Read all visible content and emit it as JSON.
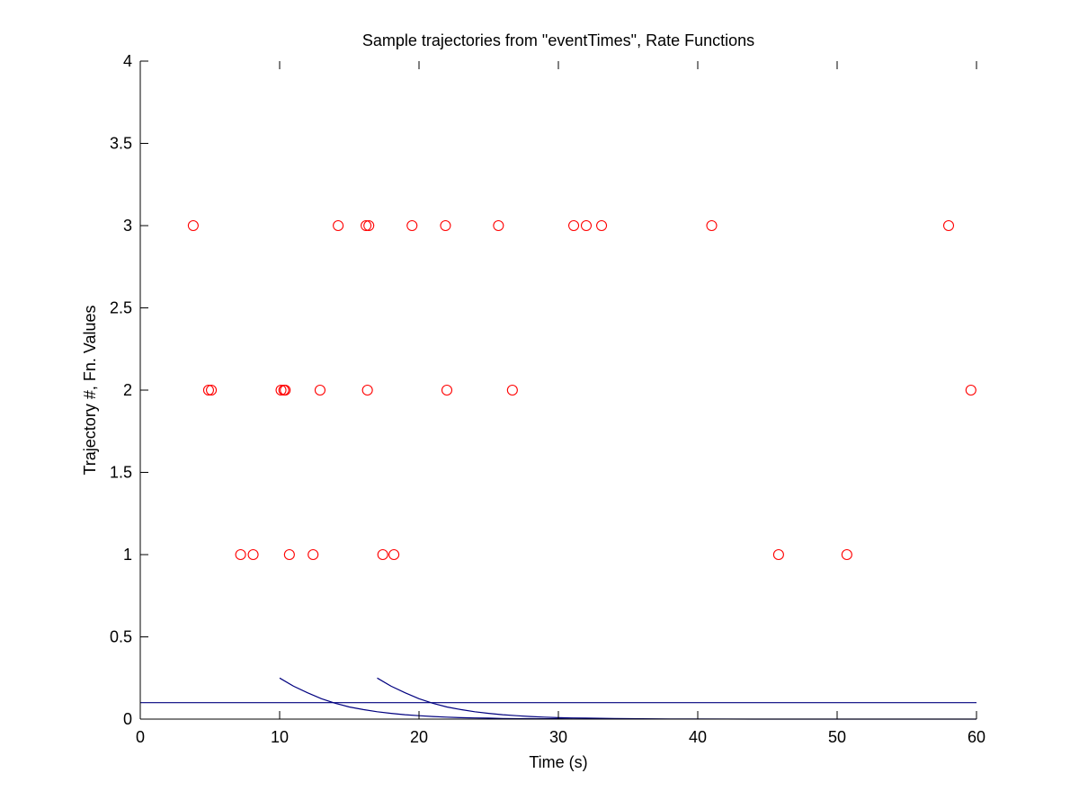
{
  "chart_data": {
    "type": "scatter",
    "title": "Sample trajectories from \"eventTimes\", Rate Functions",
    "xlabel": "Time (s)",
    "ylabel": "Trajectory #, Fn. Values",
    "xlim": [
      0,
      60
    ],
    "ylim": [
      0,
      4
    ],
    "xticks": [
      0,
      10,
      20,
      30,
      40,
      50,
      60
    ],
    "yticks": [
      0,
      0.5,
      1,
      1.5,
      2,
      2.5,
      3,
      3.5,
      4
    ],
    "xtick_labels": [
      "0",
      "10",
      "20",
      "30",
      "40",
      "50",
      "60"
    ],
    "ytick_labels": [
      "0",
      "0.5",
      "1",
      "1.5",
      "2",
      "2.5",
      "3",
      "3.5",
      "4"
    ],
    "grid": false,
    "legend": "none",
    "colors": {
      "events": "#ff0000",
      "rate": "#00007f"
    },
    "events": [
      {
        "trajectory": 1,
        "times": [
          7.2,
          8.1,
          10.7,
          12.4,
          17.4,
          18.2,
          45.8,
          50.7
        ]
      },
      {
        "trajectory": 2,
        "times": [
          4.9,
          5.1,
          10.1,
          10.3,
          10.4,
          12.9,
          16.3,
          22.0,
          26.7,
          59.6
        ]
      },
      {
        "trajectory": 3,
        "times": [
          3.8,
          14.2,
          16.2,
          16.4,
          19.5,
          21.9,
          25.7,
          31.1,
          32.0,
          33.1,
          41.0,
          58.0
        ]
      }
    ],
    "lines": [
      {
        "kind": "constant",
        "x": [
          0,
          60
        ],
        "y": [
          0.1,
          0.1
        ]
      },
      {
        "kind": "decay",
        "x": [
          10,
          11,
          12,
          13,
          14,
          15,
          16,
          17,
          18,
          19,
          20,
          21,
          22,
          23,
          24,
          25,
          26,
          27,
          28,
          29,
          30,
          31,
          32
        ],
        "y": [
          0.25,
          0.2,
          0.16,
          0.124,
          0.096,
          0.074,
          0.058,
          0.045,
          0.035,
          0.027,
          0.021,
          0.016,
          0.012,
          0.009,
          0.007,
          0.006,
          0.004,
          0.003,
          0.003,
          0.002,
          0.002,
          0.001,
          0.001
        ]
      },
      {
        "kind": "decay",
        "x": [
          17,
          18,
          19,
          20,
          21,
          22,
          23,
          24,
          25,
          26,
          27,
          28,
          29,
          30,
          31,
          32,
          34,
          36,
          38,
          40,
          44,
          48,
          52,
          56,
          60
        ],
        "y": [
          0.25,
          0.2,
          0.16,
          0.124,
          0.096,
          0.074,
          0.058,
          0.045,
          0.035,
          0.027,
          0.021,
          0.016,
          0.012,
          0.009,
          0.007,
          0.006,
          0.004,
          0.002,
          0.001,
          0.001,
          0,
          0,
          0,
          0,
          0
        ]
      }
    ]
  }
}
